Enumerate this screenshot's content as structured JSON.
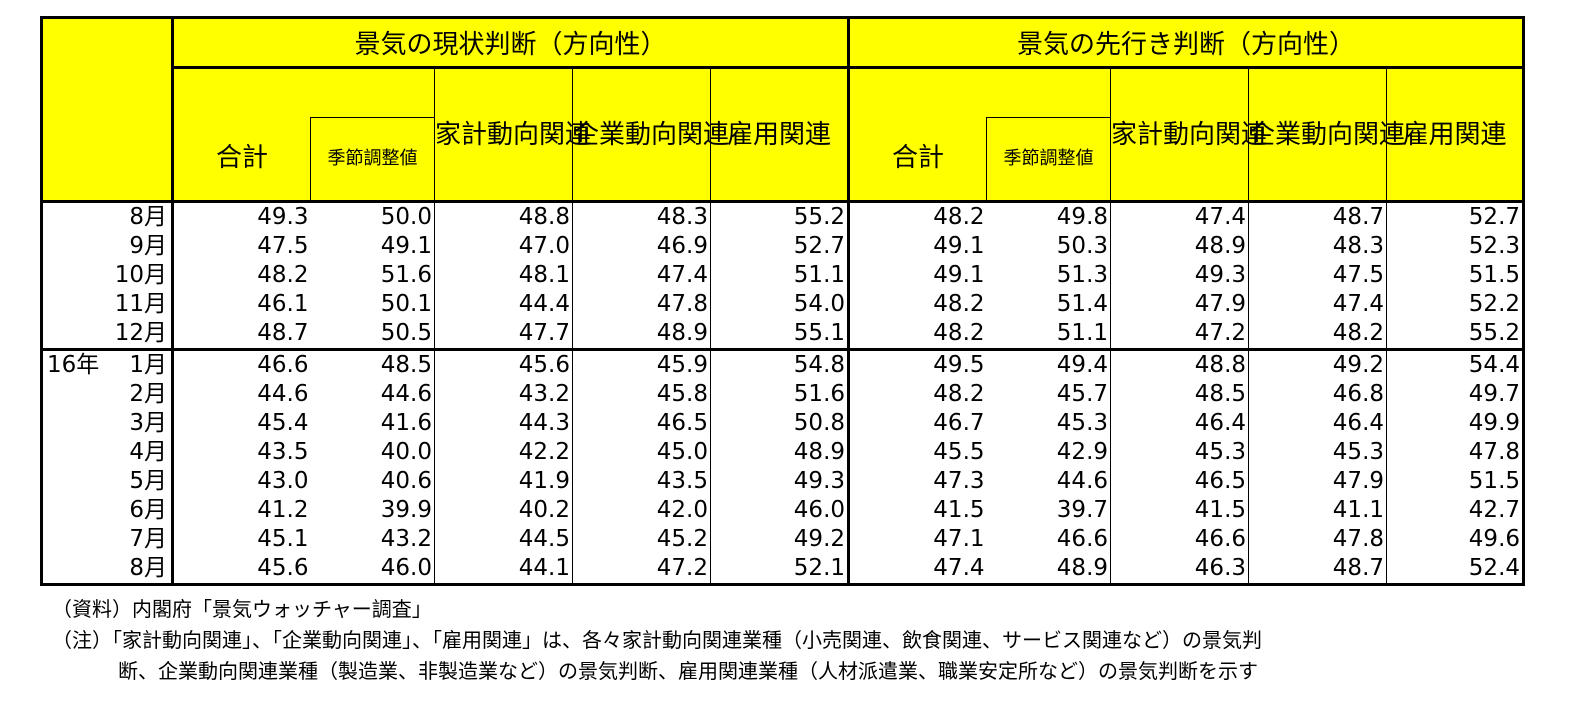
{
  "header": {
    "group_current": "景気の現状判断（方向性）",
    "group_future": "景気の先行き判断（方向性）",
    "total": "合計",
    "seasonal": "季節調整値",
    "household": "家計動向関連",
    "corporate": "企業動向関連",
    "employment": "雇用関連"
  },
  "rows": [
    {
      "year": "",
      "month": "8月",
      "v": [
        "49.3",
        "50.0",
        "48.8",
        "48.3",
        "55.2",
        "48.2",
        "49.8",
        "47.4",
        "48.7",
        "52.7"
      ]
    },
    {
      "year": "",
      "month": "9月",
      "v": [
        "47.5",
        "49.1",
        "47.0",
        "46.9",
        "52.7",
        "49.1",
        "50.3",
        "48.9",
        "48.3",
        "52.3"
      ]
    },
    {
      "year": "",
      "month": "10月",
      "v": [
        "48.2",
        "51.6",
        "48.1",
        "47.4",
        "51.1",
        "49.1",
        "51.3",
        "49.3",
        "47.5",
        "51.5"
      ]
    },
    {
      "year": "",
      "month": "11月",
      "v": [
        "46.1",
        "50.1",
        "44.4",
        "47.8",
        "54.0",
        "48.2",
        "51.4",
        "47.9",
        "47.4",
        "52.2"
      ]
    },
    {
      "year": "",
      "month": "12月",
      "v": [
        "48.7",
        "50.5",
        "47.7",
        "48.9",
        "55.1",
        "48.2",
        "51.1",
        "47.2",
        "48.2",
        "55.2"
      ]
    },
    {
      "year": "16年",
      "month": "1月",
      "v": [
        "46.6",
        "48.5",
        "45.6",
        "45.9",
        "54.8",
        "49.5",
        "49.4",
        "48.8",
        "49.2",
        "54.4"
      ]
    },
    {
      "year": "",
      "month": "2月",
      "v": [
        "44.6",
        "44.6",
        "43.2",
        "45.8",
        "51.6",
        "48.2",
        "45.7",
        "48.5",
        "46.8",
        "49.7"
      ]
    },
    {
      "year": "",
      "month": "3月",
      "v": [
        "45.4",
        "41.6",
        "44.3",
        "46.5",
        "50.8",
        "46.7",
        "45.3",
        "46.4",
        "46.4",
        "49.9"
      ]
    },
    {
      "year": "",
      "month": "4月",
      "v": [
        "43.5",
        "40.0",
        "42.2",
        "45.0",
        "48.9",
        "45.5",
        "42.9",
        "45.3",
        "45.3",
        "47.8"
      ]
    },
    {
      "year": "",
      "month": "5月",
      "v": [
        "43.0",
        "40.6",
        "41.9",
        "43.5",
        "49.3",
        "47.3",
        "44.6",
        "46.5",
        "47.9",
        "51.5"
      ]
    },
    {
      "year": "",
      "month": "6月",
      "v": [
        "41.2",
        "39.9",
        "40.2",
        "42.0",
        "46.0",
        "41.5",
        "39.7",
        "41.5",
        "41.1",
        "42.7"
      ]
    },
    {
      "year": "",
      "month": "7月",
      "v": [
        "45.1",
        "43.2",
        "44.5",
        "45.2",
        "49.2",
        "47.1",
        "46.6",
        "46.6",
        "47.8",
        "49.6"
      ]
    },
    {
      "year": "",
      "month": "8月",
      "v": [
        "45.6",
        "46.0",
        "44.1",
        "47.2",
        "52.1",
        "47.4",
        "48.9",
        "46.3",
        "48.7",
        "52.4"
      ]
    }
  ],
  "notes": {
    "source": "（資料）内閣府「景気ウォッチャー調査」",
    "note_line1": "（注）「家計動向関連」、「企業動向関連」、「雇用関連」は、各々家計動向関連業種（小売関連、飲食関連、サービス関連など）の景気判",
    "note_line2": "断、企業動向関連業種（製造業、非製造業など）の景気判断、雇用関連業種（人材派遣業、職業安定所など）の景気判断を示す"
  },
  "colors": {
    "header_bg": "#ffff00",
    "border": "#000000"
  }
}
